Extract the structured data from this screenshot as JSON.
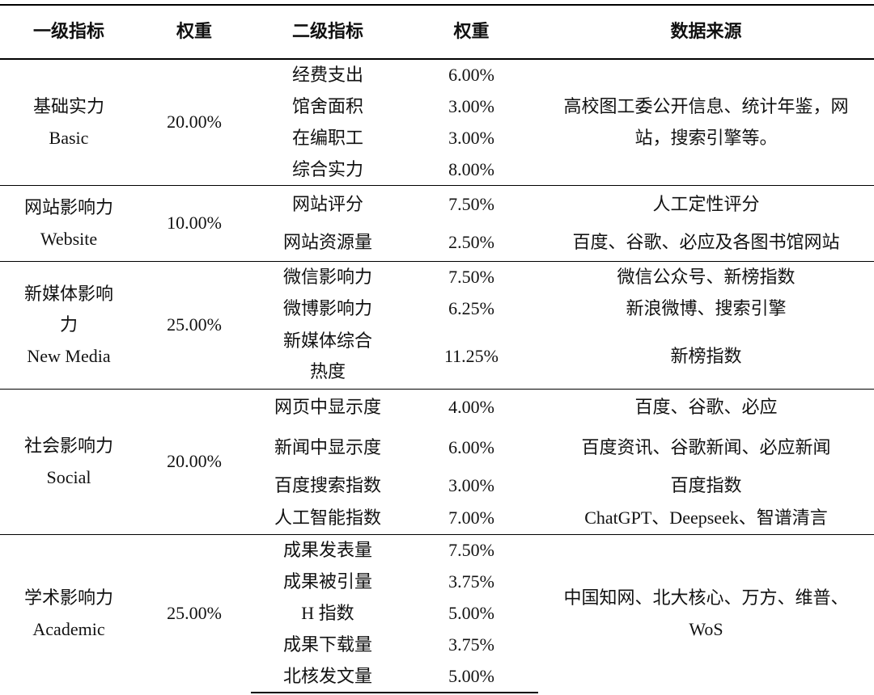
{
  "header": [
    "一级指标",
    "权重",
    "二级指标",
    "权重",
    "数据来源"
  ],
  "groups": [
    {
      "name": "基础实力",
      "name_en": "Basic",
      "weight": "20.00%",
      "source": "高校图工委公开信息、统计年鉴，网站，搜索引擎等。",
      "items": [
        {
          "name": "经费支出",
          "weight": "6.00%"
        },
        {
          "name": "馆舍面积",
          "weight": "3.00%"
        },
        {
          "name": "在编职工",
          "weight": "3.00%"
        },
        {
          "name": "综合实力",
          "weight": "8.00%"
        }
      ]
    },
    {
      "name": "网站影响力",
      "name_en": "Website",
      "weight": "10.00%",
      "items": [
        {
          "name": "网站评分",
          "weight": "7.50%",
          "source": "人工定性评分"
        },
        {
          "name": "网站资源量",
          "weight": "2.50%",
          "source": "百度、谷歌、必应及各图书馆网站"
        }
      ]
    },
    {
      "name": "新媒体影响力",
      "name_en": "New Media",
      "weight": "25.00%",
      "items": [
        {
          "name": "微信影响力",
          "weight": "7.50%",
          "source": "微信公众号、新榜指数"
        },
        {
          "name": "微博影响力",
          "weight": "6.25%",
          "source": "新浪微博、搜索引擎"
        },
        {
          "name": "新媒体综合热度",
          "weight": "11.25%",
          "source": "新榜指数"
        }
      ]
    },
    {
      "name": "社会影响力",
      "name_en": "Social",
      "weight": "20.00%",
      "items": [
        {
          "name": "网页中显示度",
          "weight": "4.00%",
          "source": "百度、谷歌、必应"
        },
        {
          "name": "新闻中显示度",
          "weight": "6.00%",
          "source": "百度资讯、谷歌新闻、必应新闻"
        },
        {
          "name": "百度搜索指数",
          "weight": "3.00%",
          "source": "百度指数"
        },
        {
          "name": "人工智能指数",
          "weight": "7.00%",
          "source": "ChatGPT、Deepseek、智谱清言"
        }
      ]
    },
    {
      "name": "学术影响力",
      "name_en": "Academic",
      "weight": "25.00%",
      "source": "中国知网、北大核心、万方、维普、WoS",
      "items": [
        {
          "name": "成果发表量",
          "weight": "7.50%"
        },
        {
          "name": "成果被引量",
          "weight": "3.75%"
        },
        {
          "name": "H 指数",
          "weight": "5.00%"
        },
        {
          "name": "成果下载量",
          "weight": "3.75%"
        },
        {
          "name": "北核发文量",
          "weight": "5.00%"
        }
      ]
    }
  ]
}
